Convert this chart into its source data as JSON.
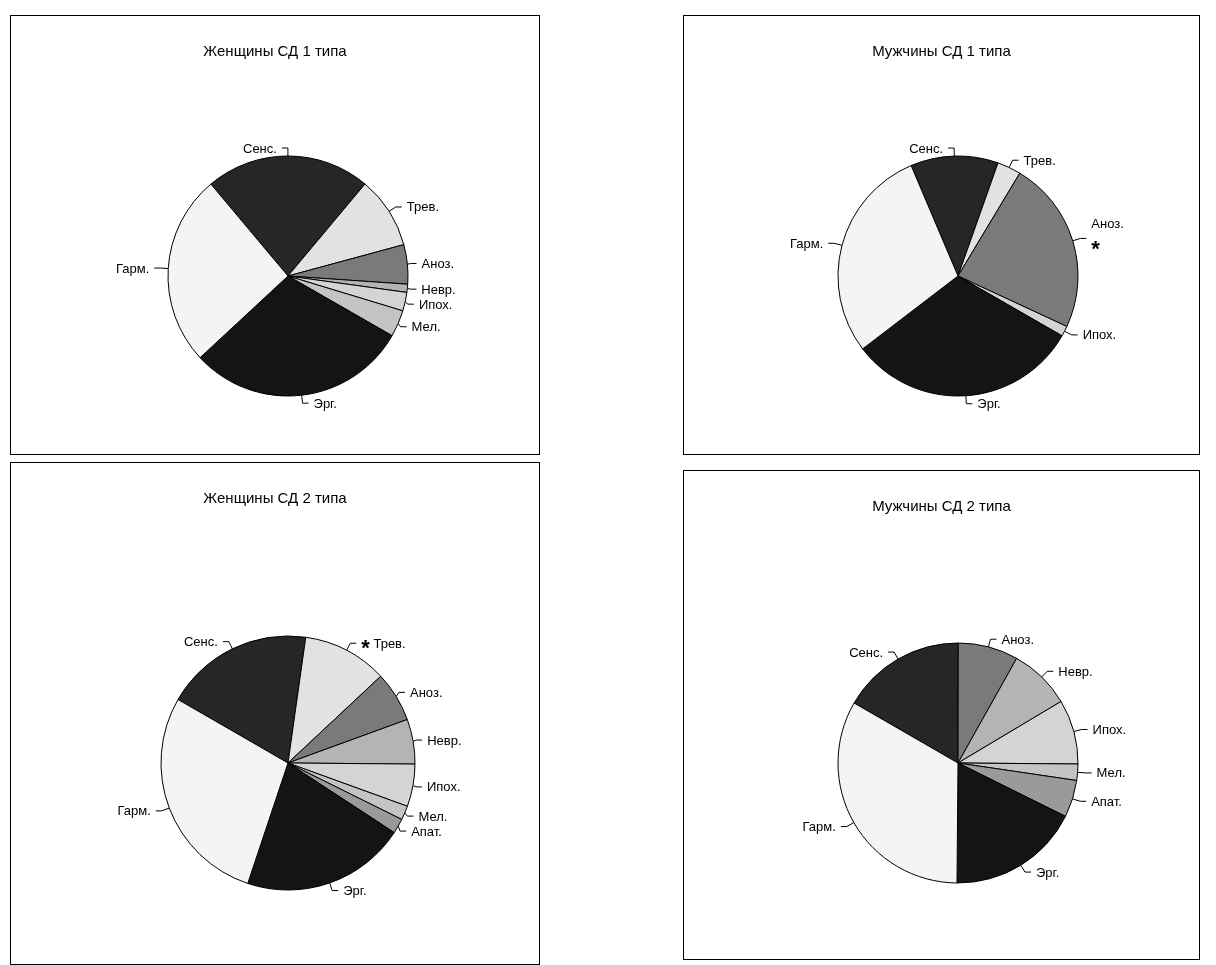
{
  "chart_data": [
    {
      "type": "pie",
      "title": "Женщины СД 1 типа",
      "categories": [
        "Сенс.",
        "Трев.",
        "Аноз.",
        "Невр.",
        "Ипох.",
        "Мел.",
        "Эрг.",
        "Гарм."
      ],
      "values": [
        22.2,
        9.7,
        5.3,
        1.1,
        2.5,
        3.6,
        29.8,
        25.8
      ],
      "colors": [
        "#262626",
        "#e2e2e2",
        "#7a7a7a",
        "#b4b4b4",
        "#d4d4d4",
        "#c4c4c4",
        "#141414",
        "#f4f4f4"
      ]
    },
    {
      "type": "pie",
      "title": "Мужчины СД 1 типа",
      "categories": [
        "Сенс.",
        "Трев.",
        "Аноз.",
        "Ипох.",
        "Эрг.",
        "Гарм."
      ],
      "values": [
        11.8,
        3.2,
        23.3,
        1.4,
        31.3,
        29
      ],
      "colors": [
        "#262626",
        "#e2e2e2",
        "#7a7a7a",
        "#d4d4d4",
        "#141414",
        "#f4f4f4"
      ],
      "annotations": [
        {
          "text": "*",
          "x": "Аноз."
        }
      ]
    },
    {
      "type": "pie",
      "title": "Женщины СД 2 типа",
      "categories": [
        "Сенс.",
        "Трев.",
        "Аноз.",
        "Невр.",
        "Ипох.",
        "Мел.",
        "Апат.",
        "Эрг.",
        "Гарм."
      ],
      "values": [
        18.9,
        10.8,
        6.4,
        5.7,
        5.4,
        1.8,
        1.9,
        20.9,
        28.2
      ],
      "colors": [
        "#262626",
        "#e2e2e2",
        "#7a7a7a",
        "#b4b4b4",
        "#d4d4d4",
        "#c4c4c4",
        "#9a9a9a",
        "#141414",
        "#f4f4f4"
      ],
      "annotations": [
        {
          "text": "*",
          "x": "Трев."
        }
      ]
    },
    {
      "type": "pie",
      "title": "Мужчины СД 2 типа",
      "categories": [
        "Сенс.",
        "Аноз.",
        "Невр.",
        "Ипох.",
        "Мел.",
        "Апат.",
        "Эрг.",
        "Гарм."
      ],
      "values": [
        16.7,
        8.1,
        8.3,
        8.7,
        2.2,
        5,
        17.8,
        33.2
      ],
      "colors": [
        "#262626",
        "#7a7a7a",
        "#b4b4b4",
        "#d4d4d4",
        "#c4c4c4",
        "#9a9a9a",
        "#141414",
        "#f4f4f4"
      ]
    }
  ]
}
